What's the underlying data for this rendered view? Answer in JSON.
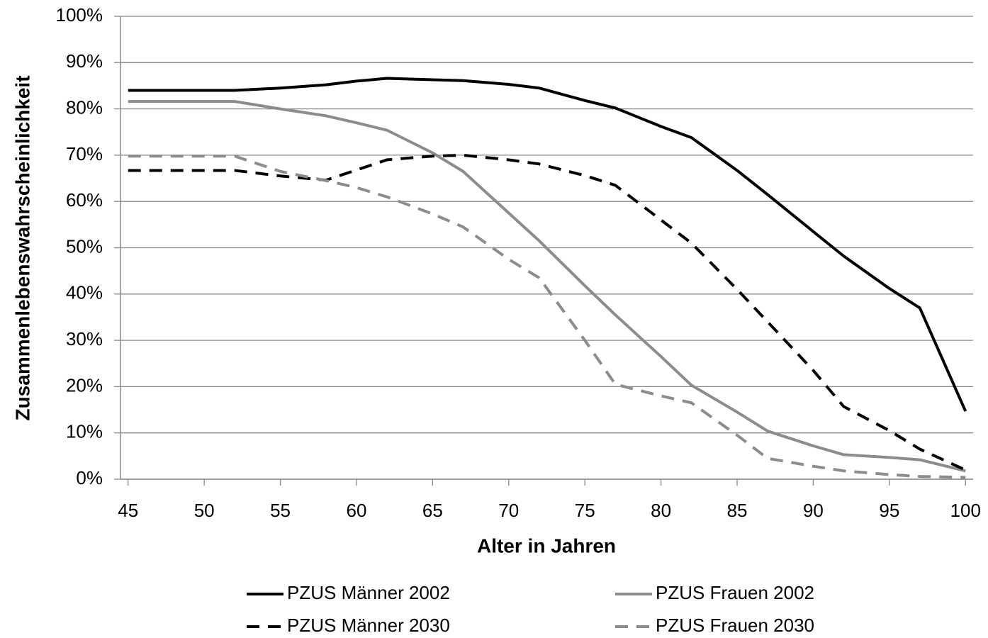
{
  "chart_data": {
    "type": "line",
    "x_label": "Alter in Jahren",
    "y_label": "Zusammenlebenswahrscheinlichkeit",
    "x": [
      45,
      52,
      55,
      58,
      60,
      62,
      65,
      67,
      70,
      72,
      75,
      77,
      80,
      82,
      85,
      87,
      90,
      92,
      95,
      97,
      100
    ],
    "series": [
      {
        "name": "PZUS Männer 2002",
        "color": "#000000",
        "dashed": false,
        "values": [
          84,
          84,
          84.5,
          85.2,
          86,
          86.6,
          86.3,
          86.1,
          85.3,
          84.5,
          81.8,
          80.2,
          76.2,
          73.8,
          66.7,
          61.5,
          53.5,
          48.2,
          41.2,
          37,
          14.7
        ]
      },
      {
        "name": "PZUS Frauen 2002",
        "color": "#8c8c8c",
        "dashed": false,
        "values": [
          81.6,
          81.6,
          80,
          78.5,
          77,
          75.4,
          70.5,
          66.5,
          57.5,
          51.5,
          41.8,
          35.5,
          26.5,
          20.3,
          14.5,
          10.4,
          7.2,
          5.3,
          4.7,
          4.2,
          1.8
        ]
      },
      {
        "name": "PZUS Männer 2030",
        "color": "#000000",
        "dashed": true,
        "values": [
          66.7,
          66.7,
          65.5,
          64.6,
          66.8,
          69,
          69.8,
          70,
          69,
          68.1,
          65.6,
          63.5,
          56,
          51,
          41,
          34,
          23.5,
          15.7,
          10.5,
          6.5,
          2
        ]
      },
      {
        "name": "PZUS Frauen 2030",
        "color": "#8c8c8c",
        "dashed": true,
        "values": [
          69.8,
          69.8,
          66.5,
          64.5,
          63,
          61,
          57.3,
          54.5,
          47.5,
          43.5,
          30,
          20.5,
          18,
          16.5,
          9.5,
          4.5,
          2.8,
          1.8,
          1,
          0.6,
          0.4
        ]
      }
    ],
    "xlim": [
      44.5,
      100.5
    ],
    "xticks": [
      45,
      50,
      55,
      60,
      65,
      70,
      75,
      80,
      85,
      90,
      95,
      100
    ],
    "ylim": [
      0,
      100
    ],
    "yticks": [
      {
        "value": 0,
        "label": "0%"
      },
      {
        "value": 10,
        "label": "10%"
      },
      {
        "value": 20,
        "label": "20%"
      },
      {
        "value": 30,
        "label": "30%"
      },
      {
        "value": 40,
        "label": "40%"
      },
      {
        "value": 50,
        "label": "50%"
      },
      {
        "value": 60,
        "label": "60%"
      },
      {
        "value": 70,
        "label": "70%"
      },
      {
        "value": 80,
        "label": "80%"
      },
      {
        "value": 90,
        "label": "90%"
      },
      {
        "value": 100,
        "label": "100%"
      }
    ],
    "grid": true,
    "legend": "bottom"
  }
}
